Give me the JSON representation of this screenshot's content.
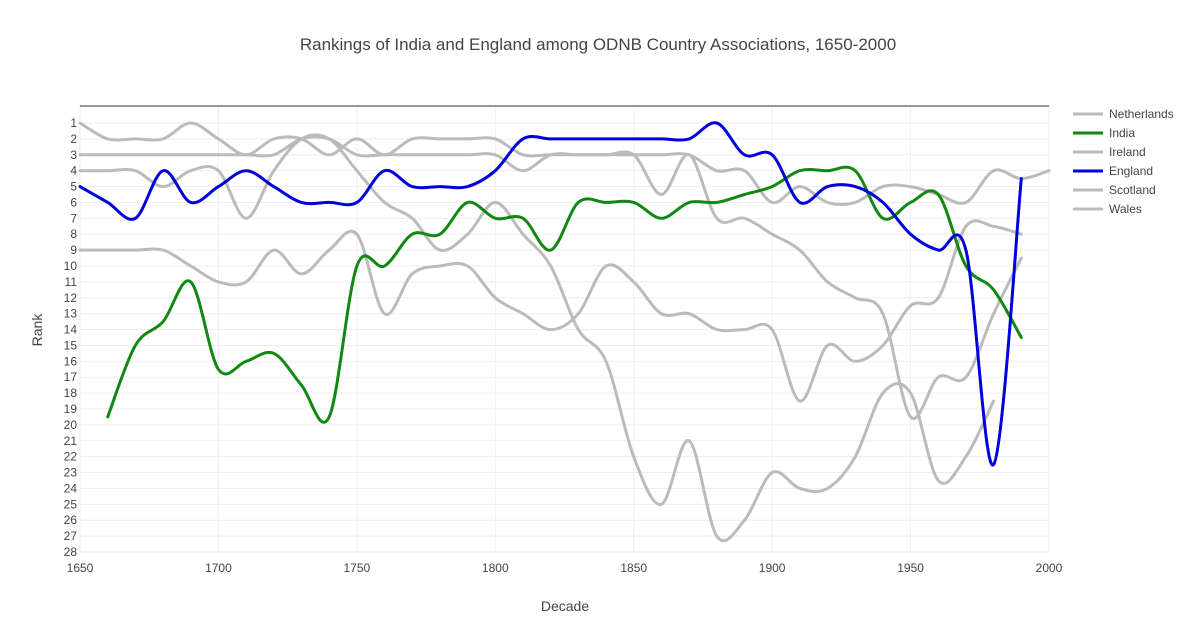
{
  "chart_data": {
    "type": "line",
    "title": "Rankings of India and England among ODNB Country Associations, 1650-2000",
    "xlabel": "Decade",
    "ylabel": "Rank",
    "xlim": [
      1650,
      2000
    ],
    "ylim": [
      28,
      1
    ],
    "y_reversed": true,
    "grid": true,
    "legend_position": "top-right",
    "x_ticks": [
      1650,
      1700,
      1750,
      1800,
      1850,
      1900,
      1950,
      2000
    ],
    "y_ticks": [
      1,
      2,
      3,
      4,
      5,
      6,
      7,
      8,
      9,
      10,
      11,
      12,
      13,
      14,
      15,
      16,
      17,
      18,
      19,
      20,
      21,
      22,
      23,
      24,
      25,
      26,
      27,
      28
    ],
    "series": [
      {
        "name": "Netherlands",
        "color": "#bbbbbb",
        "x": [
          1650,
          1660,
          1670,
          1680,
          1690,
          1700,
          1710,
          1720,
          1730,
          1740,
          1750,
          1760,
          1770,
          1780,
          1790,
          1800,
          1810,
          1820,
          1830,
          1840,
          1850,
          1860,
          1870,
          1880,
          1890,
          1900,
          1910,
          1920,
          1930,
          1940,
          1950,
          1960,
          1970,
          1980,
          1990,
          2000
        ],
        "y": [
          1,
          2,
          2,
          2,
          1,
          2,
          3,
          2,
          2,
          3,
          2,
          3,
          2,
          2,
          2,
          2,
          3,
          3,
          3,
          3,
          3,
          3,
          3,
          4,
          4,
          6,
          5,
          6,
          6,
          5,
          5,
          5.5,
          6,
          4,
          4.5,
          4
        ]
      },
      {
        "name": "India",
        "color": "#118811",
        "x": [
          1660,
          1670,
          1680,
          1690,
          1700,
          1710,
          1720,
          1730,
          1740,
          1750,
          1760,
          1770,
          1780,
          1790,
          1800,
          1810,
          1820,
          1830,
          1840,
          1850,
          1860,
          1870,
          1880,
          1890,
          1900,
          1910,
          1920,
          1930,
          1940,
          1950,
          1960,
          1970,
          1980,
          1990
        ],
        "y": [
          19.5,
          15,
          13.5,
          11,
          16.5,
          16,
          15.5,
          17.5,
          19.5,
          10,
          10,
          8,
          8,
          6,
          7,
          7,
          9,
          6,
          6,
          6,
          7,
          6,
          6,
          5.5,
          5,
          4,
          4,
          4,
          7,
          6,
          5.5,
          10,
          11.5,
          14.5
        ]
      },
      {
        "name": "Ireland",
        "color": "#bbbbbb",
        "x": [
          1650,
          1660,
          1670,
          1680,
          1690,
          1700,
          1710,
          1720,
          1730,
          1740,
          1750,
          1760,
          1770,
          1780,
          1790,
          1800,
          1810,
          1820,
          1830,
          1840,
          1850,
          1860,
          1870,
          1880,
          1890,
          1900,
          1910,
          1920,
          1930,
          1940,
          1950,
          1960,
          1970,
          1980,
          1990
        ],
        "y": [
          9,
          9,
          9,
          9,
          10,
          11,
          11,
          9,
          10.5,
          9,
          8,
          13,
          10.5,
          10,
          10,
          12,
          13,
          14,
          13,
          10,
          11,
          13,
          13,
          14,
          14,
          14,
          18.5,
          15,
          16,
          15,
          12.5,
          12,
          7.5,
          7.5,
          8
        ]
      },
      {
        "name": "England",
        "color": "#0000dd",
        "x": [
          1650,
          1660,
          1670,
          1680,
          1690,
          1700,
          1710,
          1720,
          1730,
          1740,
          1750,
          1760,
          1770,
          1780,
          1790,
          1800,
          1810,
          1820,
          1830,
          1840,
          1850,
          1860,
          1870,
          1880,
          1890,
          1900,
          1910,
          1920,
          1930,
          1940,
          1950,
          1960,
          1970,
          1980,
          1990
        ],
        "y": [
          5,
          6,
          7,
          4,
          6,
          5,
          4,
          5,
          6,
          6,
          6,
          4,
          5,
          5,
          5,
          4,
          2,
          2,
          2,
          2,
          2,
          2,
          2,
          1,
          3,
          3,
          6,
          5,
          5,
          6,
          8,
          9,
          9,
          22.5,
          4.5
        ]
      },
      {
        "name": "Scotland",
        "color": "#bbbbbb",
        "x": [
          1650,
          1660,
          1670,
          1680,
          1690,
          1700,
          1710,
          1720,
          1730,
          1740,
          1750,
          1760,
          1770,
          1780,
          1790,
          1800,
          1810,
          1820,
          1830,
          1840,
          1850,
          1860,
          1870,
          1880,
          1890,
          1900,
          1910,
          1920,
          1930,
          1940,
          1950,
          1960,
          1970,
          1980,
          1990
        ],
        "y": [
          3,
          3,
          3,
          3,
          3,
          3,
          3,
          3,
          2,
          2,
          3,
          3,
          3,
          3,
          3,
          3,
          4,
          3,
          3,
          3,
          3,
          5.5,
          3,
          7,
          7,
          8,
          9,
          11,
          12,
          13,
          19.5,
          17,
          17,
          13,
          9.5
        ]
      },
      {
        "name": "Wales",
        "color": "#bbbbbb",
        "x": [
          1650,
          1660,
          1670,
          1680,
          1690,
          1700,
          1710,
          1720,
          1730,
          1740,
          1750,
          1760,
          1770,
          1780,
          1790,
          1800,
          1810,
          1820,
          1830,
          1840,
          1850,
          1860,
          1870,
          1880,
          1890,
          1900,
          1910,
          1920,
          1930,
          1940,
          1950,
          1960,
          1970,
          1980
        ],
        "y": [
          4,
          4,
          4,
          5,
          4,
          4,
          7,
          4,
          2,
          2,
          4,
          6,
          7,
          9,
          8,
          6,
          8,
          10,
          14,
          16,
          22,
          25,
          21,
          27,
          26,
          23,
          24,
          24,
          22,
          18,
          18,
          23.5,
          22,
          18.5
        ]
      }
    ]
  }
}
